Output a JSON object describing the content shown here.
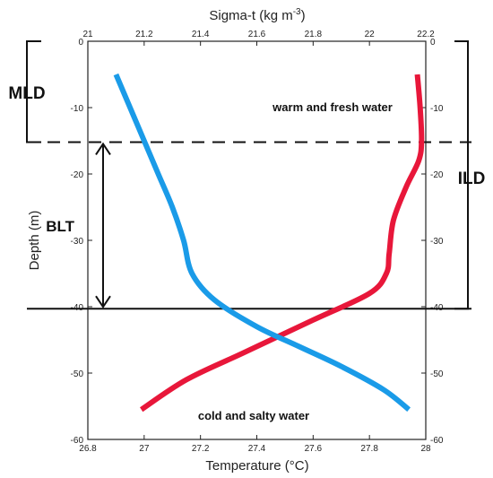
{
  "chart_data": {
    "type": "line",
    "title": "",
    "y_axis": {
      "label": "Depth (m)",
      "range": [
        -60,
        0
      ],
      "ticks": [
        0,
        -10,
        -20,
        -30,
        -40,
        -50,
        -60
      ]
    },
    "x_axis_bottom": {
      "label": "Temperature (°C)",
      "range": [
        26.8,
        28
      ],
      "ticks": [
        26.8,
        27,
        27.2,
        27.4,
        27.6,
        27.8,
        28
      ]
    },
    "x_axis_top": {
      "label_main": "Sigma-t (kg m",
      "label_sup": "-3",
      "label_end": ")",
      "range": [
        21,
        22.2
      ],
      "ticks": [
        21,
        21.2,
        21.4,
        21.6,
        21.8,
        22,
        22.2
      ]
    },
    "series": [
      {
        "axis": "bottom",
        "color": "#e8173a",
        "points": [
          {
            "x": 27.97,
            "y": -5
          },
          {
            "x": 27.98,
            "y": -10
          },
          {
            "x": 27.985,
            "y": -15
          },
          {
            "x": 27.975,
            "y": -18
          },
          {
            "x": 27.93,
            "y": -22
          },
          {
            "x": 27.885,
            "y": -27
          },
          {
            "x": 27.87,
            "y": -32
          },
          {
            "x": 27.86,
            "y": -35
          },
          {
            "x": 27.8,
            "y": -38
          },
          {
            "x": 27.6,
            "y": -42
          },
          {
            "x": 27.35,
            "y": -47
          },
          {
            "x": 27.15,
            "y": -51
          },
          {
            "x": 26.99,
            "y": -55.5
          }
        ]
      },
      {
        "axis": "top",
        "color": "#1a9be8",
        "points": [
          {
            "x": 21.1,
            "y": -5
          },
          {
            "x": 21.15,
            "y": -10
          },
          {
            "x": 21.2,
            "y": -15
          },
          {
            "x": 21.25,
            "y": -20
          },
          {
            "x": 21.3,
            "y": -25
          },
          {
            "x": 21.34,
            "y": -30
          },
          {
            "x": 21.37,
            "y": -35
          },
          {
            "x": 21.45,
            "y": -39
          },
          {
            "x": 21.6,
            "y": -43
          },
          {
            "x": 21.75,
            "y": -46
          },
          {
            "x": 21.9,
            "y": -49
          },
          {
            "x": 22.05,
            "y": -52.5
          },
          {
            "x": 22.14,
            "y": -55.5
          }
        ]
      }
    ],
    "reference_lines": [
      {
        "depth": -15.2,
        "style": "dashed"
      },
      {
        "depth": -40.3,
        "style": "solid"
      }
    ],
    "annotations": {
      "warm": "warm and fresh water",
      "cold": "cold and salty water",
      "mld": "MLD",
      "ild": "ILD",
      "blt": "BLT"
    },
    "brackets": {
      "mld": [
        0,
        -15.2
      ],
      "ild": [
        0,
        -40.3
      ],
      "blt": [
        -15.2,
        -40.3
      ]
    }
  }
}
